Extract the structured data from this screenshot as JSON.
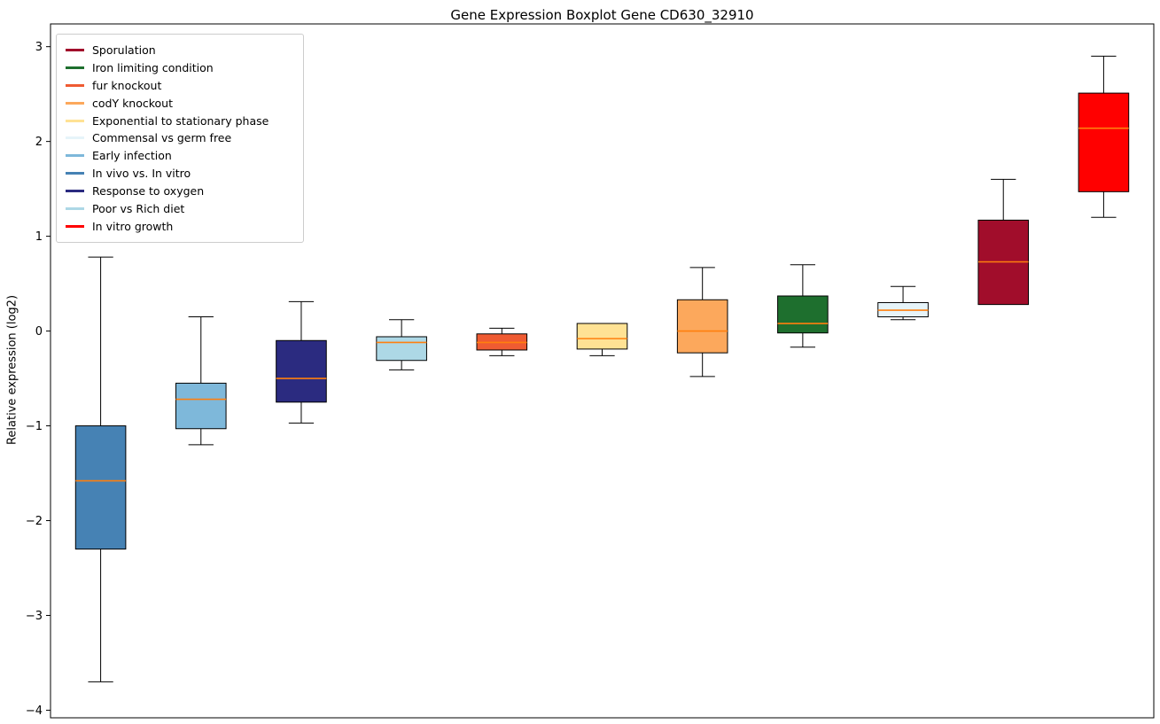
{
  "title": "Gene Expression Boxplot Gene CD630_32910",
  "ylabel": "Relative expression (log2)",
  "legend": [
    {
      "label": "Sporulation",
      "color": "#A10D2B"
    },
    {
      "label": "Iron limiting condition",
      "color": "#1E6F2E"
    },
    {
      "label": "fur knockout",
      "color": "#EF5B32"
    },
    {
      "label": "codY knockout",
      "color": "#FCA85C"
    },
    {
      "label": "Exponential to stationary phase",
      "color": "#FFE294"
    },
    {
      "label": "Commensal vs germ free",
      "color": "#E6F4F9"
    },
    {
      "label": "Early infection",
      "color": "#7EB8DA"
    },
    {
      "label": "In vivo vs. In vitro",
      "color": "#4682B4"
    },
    {
      "label": "Response to oxygen",
      "color": "#2B2B80"
    },
    {
      "label": "Poor vs Rich diet",
      "color": "#ADD8E6"
    },
    {
      "label": "In vitro growth",
      "color": "#FF0000"
    }
  ],
  "chart_data": {
    "type": "boxplot",
    "title": "Gene Expression Boxplot Gene CD630_32910",
    "xlabel": "",
    "ylabel": "Relative expression (log2)",
    "ylim": [
      -4.08,
      3.24
    ],
    "yticks": [
      3,
      2,
      1,
      0,
      -1,
      -2,
      -3,
      -4
    ],
    "grid": false,
    "legend_position": "upper left",
    "median_color": "#FF7F0E",
    "box_edge_color": "#000000",
    "series": [
      {
        "name": "In vivo vs. In vitro",
        "color": "#4682B4",
        "whisker_low": -3.7,
        "q1": -2.3,
        "median": -1.58,
        "q3": -1.0,
        "whisker_high": 0.78
      },
      {
        "name": "Early infection",
        "color": "#7EB8DA",
        "whisker_low": -1.2,
        "q1": -1.03,
        "median": -0.72,
        "q3": -0.55,
        "whisker_high": 0.15
      },
      {
        "name": "Response to oxygen",
        "color": "#2B2B80",
        "whisker_low": -0.97,
        "q1": -0.75,
        "median": -0.5,
        "q3": -0.1,
        "whisker_high": 0.31
      },
      {
        "name": "Poor vs Rich diet",
        "color": "#ADD8E6",
        "whisker_low": -0.41,
        "q1": -0.31,
        "median": -0.12,
        "q3": -0.06,
        "whisker_high": 0.12
      },
      {
        "name": "fur knockout",
        "color": "#EF5B32",
        "whisker_low": -0.26,
        "q1": -0.2,
        "median": -0.12,
        "q3": -0.03,
        "whisker_high": 0.03
      },
      {
        "name": "Exponential to stationary phase",
        "color": "#FFE294",
        "whisker_low": -0.26,
        "q1": -0.19,
        "median": -0.08,
        "q3": 0.08,
        "whisker_high": 0.08
      },
      {
        "name": "codY knockout",
        "color": "#FCA85C",
        "whisker_low": -0.48,
        "q1": -0.23,
        "median": 0.0,
        "q3": 0.33,
        "whisker_high": 0.67
      },
      {
        "name": "Iron limiting condition",
        "color": "#1E6F2E",
        "whisker_low": -0.17,
        "q1": -0.02,
        "median": 0.08,
        "q3": 0.37,
        "whisker_high": 0.7
      },
      {
        "name": "Commensal vs germ free",
        "color": "#E6F4F9",
        "whisker_low": 0.12,
        "q1": 0.15,
        "median": 0.22,
        "q3": 0.3,
        "whisker_high": 0.47
      },
      {
        "name": "Sporulation",
        "color": "#A10D2B",
        "whisker_low": 0.28,
        "q1": 0.28,
        "median": 0.73,
        "q3": 1.17,
        "whisker_high": 1.6
      },
      {
        "name": "In vitro growth",
        "color": "#FF0000",
        "whisker_low": 1.2,
        "q1": 1.47,
        "median": 2.14,
        "q3": 2.51,
        "whisker_high": 2.9
      }
    ]
  }
}
